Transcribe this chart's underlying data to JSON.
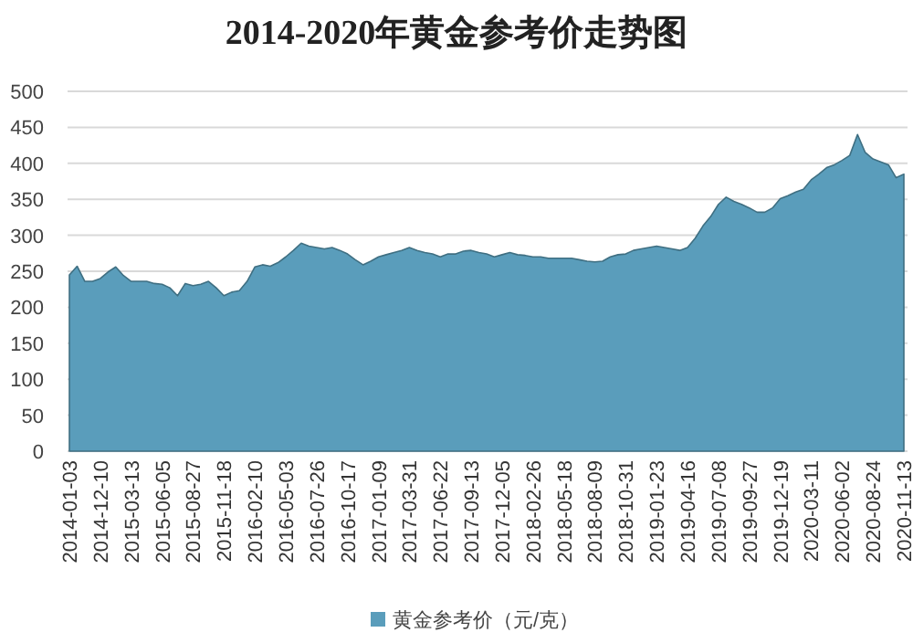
{
  "chart_data": {
    "type": "area",
    "title": "2014-2020年黄金参考价走势图",
    "categories": [
      "2014-01-03",
      null,
      null,
      null,
      "2014-12-10",
      null,
      null,
      null,
      "2015-03-13",
      null,
      null,
      null,
      "2015-06-05",
      null,
      null,
      null,
      "2015-08-27",
      null,
      null,
      null,
      "2015-11-18",
      null,
      null,
      null,
      "2016-02-10",
      null,
      null,
      null,
      "2016-05-03",
      null,
      null,
      null,
      "2016-07-26",
      null,
      null,
      null,
      "2016-10-17",
      null,
      null,
      null,
      "2017-01-09",
      null,
      null,
      null,
      "2017-03-31",
      null,
      null,
      null,
      "2017-06-22",
      null,
      null,
      null,
      "2017-09-13",
      null,
      null,
      null,
      "2017-12-05",
      null,
      null,
      null,
      "2018-02-26",
      null,
      null,
      null,
      "2018-05-18",
      null,
      null,
      null,
      "2018-08-09",
      null,
      null,
      null,
      "2018-10-31",
      null,
      null,
      null,
      "2019-01-23",
      null,
      null,
      null,
      "2019-04-16",
      null,
      null,
      null,
      "2019-07-08",
      null,
      null,
      null,
      "2019-09-27",
      null,
      null,
      null,
      "2019-12-19",
      null,
      null,
      null,
      "2020-03-11",
      null,
      null,
      null,
      "2020-06-02",
      null,
      null,
      null,
      "2020-08-24",
      null,
      null,
      null,
      "2020-11-13"
    ],
    "series": [
      {
        "name": "黄金参考价（元/克）",
        "color": "#5a9dbb",
        "values": [
          245,
          257,
          236,
          236,
          240,
          249,
          256,
          244,
          236,
          236,
          236,
          233,
          232,
          227,
          216,
          233,
          230,
          232,
          236,
          227,
          216,
          221,
          223,
          236,
          256,
          259,
          257,
          262,
          270,
          279,
          289,
          285,
          283,
          281,
          283,
          279,
          274,
          266,
          259,
          264,
          270,
          273,
          276,
          279,
          283,
          279,
          276,
          274,
          270,
          274,
          274,
          278,
          279,
          276,
          274,
          270,
          273,
          276,
          273,
          272,
          270,
          270,
          268,
          268,
          268,
          268,
          266,
          264,
          263,
          264,
          270,
          273,
          274,
          279,
          281,
          283,
          285,
          283,
          281,
          279,
          283,
          296,
          313,
          326,
          343,
          353,
          347,
          343,
          338,
          332,
          332,
          338,
          351,
          355,
          360,
          364,
          377,
          385,
          394,
          398,
          404,
          411,
          440,
          415,
          406,
          402,
          398,
          380,
          385
        ]
      }
    ],
    "ylim": [
      0,
      500
    ],
    "yticks": [
      0,
      50,
      100,
      150,
      200,
      250,
      300,
      350,
      400,
      450,
      500
    ],
    "grid": "y",
    "legend": "bottom"
  }
}
